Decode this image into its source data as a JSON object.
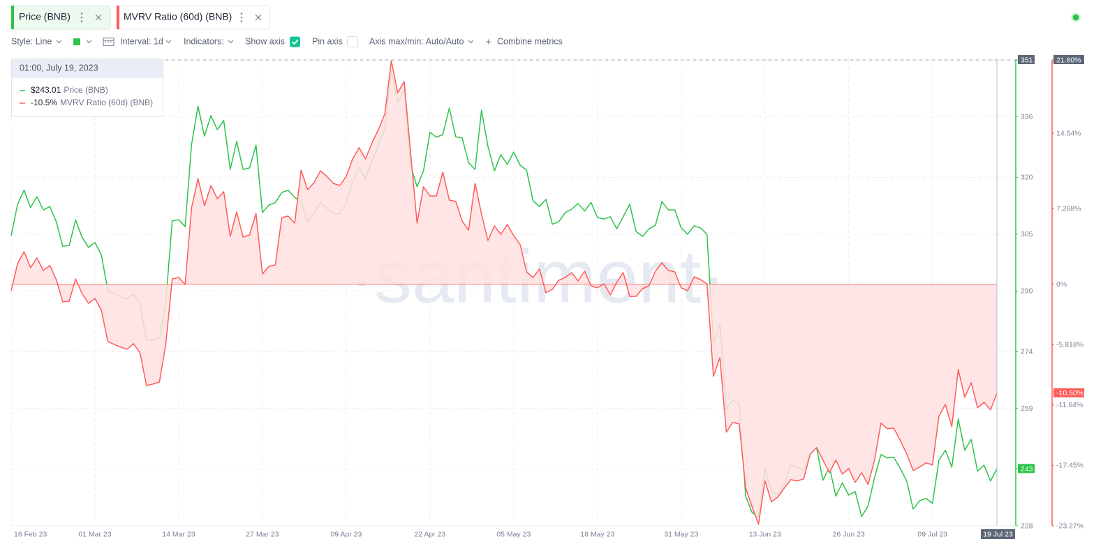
{
  "chart_data": {
    "type": "line",
    "toolbar": {
      "style": "Style: Line",
      "interval": "Interval: 1d",
      "indicators": "Indicators:",
      "show_axis": "Show axis",
      "pin_axis": "Pin axis",
      "axis_minmax": "Axis max/min: Auto/Auto",
      "combine": "Combine metrics"
    },
    "watermark": "·santiment·",
    "tooltip": {
      "title": "01:00, July 19, 2023",
      "value_labels": [
        "$243.01",
        "-10.5%"
      ]
    },
    "x": [
      "16 Feb 23",
      "17 Feb 23",
      "18 Feb 23",
      "19 Feb 23",
      "20 Feb 23",
      "21 Feb 23",
      "22 Feb 23",
      "23 Feb 23",
      "24 Feb 23",
      "25 Feb 23",
      "26 Feb 23",
      "27 Feb 23",
      "28 Feb 23",
      "01 Mar 23",
      "02 Mar 23",
      "03 Mar 23",
      "04 Mar 23",
      "05 Mar 23",
      "06 Mar 23",
      "07 Mar 23",
      "08 Mar 23",
      "09 Mar 23",
      "10 Mar 23",
      "11 Mar 23",
      "12 Mar 23",
      "13 Mar 23",
      "14 Mar 23",
      "15 Mar 23",
      "16 Mar 23",
      "17 Mar 23",
      "18 Mar 23",
      "19 Mar 23",
      "20 Mar 23",
      "21 Mar 23",
      "22 Mar 23",
      "23 Mar 23",
      "24 Mar 23",
      "25 Mar 23",
      "26 Mar 23",
      "27 Mar 23",
      "28 Mar 23",
      "29 Mar 23",
      "30 Mar 23",
      "31 Mar 23",
      "01 Apr 23",
      "02 Apr 23",
      "03 Apr 23",
      "04 Apr 23",
      "05 Apr 23",
      "06 Apr 23",
      "07 Apr 23",
      "08 Apr 23",
      "09 Apr 23",
      "10 Apr 23",
      "11 Apr 23",
      "12 Apr 23",
      "13 Apr 23",
      "14 Apr 23",
      "15 Apr 23",
      "16 Apr 23",
      "17 Apr 23",
      "18 Apr 23",
      "19 Apr 23",
      "20 Apr 23",
      "21 Apr 23",
      "22 Apr 23",
      "23 Apr 23",
      "24 Apr 23",
      "25 Apr 23",
      "26 Apr 23",
      "27 Apr 23",
      "28 Apr 23",
      "29 Apr 23",
      "30 Apr 23",
      "01 May 23",
      "02 May 23",
      "03 May 23",
      "04 May 23",
      "05 May 23",
      "06 May 23",
      "07 May 23",
      "08 May 23",
      "09 May 23",
      "10 May 23",
      "11 May 23",
      "12 May 23",
      "13 May 23",
      "14 May 23",
      "15 May 23",
      "16 May 23",
      "17 May 23",
      "18 May 23",
      "19 May 23",
      "20 May 23",
      "21 May 23",
      "22 May 23",
      "23 May 23",
      "24 May 23",
      "25 May 23",
      "26 May 23",
      "27 May 23",
      "28 May 23",
      "29 May 23",
      "30 May 23",
      "31 May 23",
      "01 Jun 23",
      "02 Jun 23",
      "03 Jun 23",
      "04 Jun 23",
      "05 Jun 23",
      "06 Jun 23",
      "07 Jun 23",
      "08 Jun 23",
      "09 Jun 23",
      "10 Jun 23",
      "11 Jun 23",
      "12 Jun 23",
      "13 Jun 23",
      "14 Jun 23",
      "15 Jun 23",
      "16 Jun 23",
      "17 Jun 23",
      "18 Jun 23",
      "19 Jun 23",
      "20 Jun 23",
      "21 Jun 23",
      "22 Jun 23",
      "23 Jun 23",
      "24 Jun 23",
      "25 Jun 23",
      "26 Jun 23",
      "27 Jun 23",
      "28 Jun 23",
      "29 Jun 23",
      "30 Jun 23",
      "01 Jul 23",
      "02 Jul 23",
      "03 Jul 23",
      "04 Jul 23",
      "05 Jul 23",
      "06 Jul 23",
      "07 Jul 23",
      "08 Jul 23",
      "09 Jul 23",
      "10 Jul 23",
      "11 Jul 23",
      "12 Jul 23",
      "13 Jul 23",
      "14 Jul 23",
      "15 Jul 23",
      "16 Jul 23",
      "17 Jul 23",
      "18 Jul 23",
      "19 Jul 23"
    ],
    "xticks": [
      "16 Feb 23",
      "01 Mar 23",
      "14 Mar 23",
      "27 Mar 23",
      "09 Apr 23",
      "22 Apr 23",
      "05 May 23",
      "18 May 23",
      "31 May 23",
      "13 Jun 23",
      "26 Jun 23",
      "09 Jul 23",
      "19 Jul 23"
    ],
    "series": [
      {
        "name": "Price (BNB)",
        "color": "#2bc34b",
        "axis": "y",
        "last_label": "243",
        "values": [
          304.6,
          312.9,
          316.6,
          312.0,
          314.9,
          311.4,
          312.3,
          308.3,
          301.8,
          302.0,
          308.7,
          304.2,
          301.5,
          302.8,
          299.5,
          290.2,
          289.3,
          288.4,
          287.9,
          289.1,
          286.7,
          277.0,
          277.0,
          277.5,
          287.1,
          308.5,
          308.8,
          307.0,
          328.7,
          338.8,
          330.9,
          336.3,
          332.6,
          335.0,
          322.1,
          329.5,
          322.1,
          322.5,
          328.5,
          310.7,
          312.7,
          313.3,
          316.0,
          316.6,
          314.7,
          313.6,
          308.3,
          310.7,
          313.4,
          311.8,
          310.5,
          310.3,
          313.4,
          318.6,
          322.6,
          319.7,
          324.3,
          328.4,
          332.8,
          348.2,
          339.8,
          343.3,
          323.0,
          317.5,
          321.7,
          331.9,
          330.6,
          331.3,
          338.3,
          330.7,
          330.4,
          323.9,
          322.1,
          337.7,
          328.2,
          321.7,
          326.0,
          323.4,
          326.7,
          323.2,
          321.9,
          313.8,
          312.3,
          314.2,
          307.6,
          308.3,
          310.7,
          311.6,
          313.1,
          311.1,
          313.4,
          309.4,
          309.0,
          309.6,
          306.4,
          309.6,
          312.9,
          305.7,
          304.4,
          306.4,
          307.4,
          313.6,
          311.4,
          311.4,
          306.6,
          305.0,
          307.2,
          306.6,
          305.0,
          276.3,
          281.4,
          258.8,
          261.3,
          260.1,
          235.8,
          231.5,
          230.2,
          243.3,
          237.0,
          236.1,
          239.1,
          244.0,
          243.5,
          242.4,
          247.0,
          248.6,
          240.0,
          243.5,
          235.8,
          239.3,
          236.1,
          237.0,
          230.4,
          233.2,
          240.7,
          246.8,
          245.9,
          246.1,
          243.1,
          239.8,
          232.4,
          234.6,
          235.2,
          233.9,
          245.3,
          247.9,
          243.5,
          256.2,
          247.9,
          250.8,
          242.4,
          244.0,
          239.8,
          243.01
        ]
      },
      {
        "name": "MVRV Ratio (60d) (BNB)",
        "color": "#ff5b5b",
        "axis": "y2",
        "area": true,
        "area_color": "#ffe0e0",
        "last_label": "-10.50%",
        "values": [
          -0.63,
          1.99,
          3.13,
          1.59,
          2.53,
          1.32,
          1.79,
          0.44,
          -1.7,
          -1.64,
          0.51,
          -0.9,
          -1.84,
          -1.37,
          -2.51,
          -5.53,
          -5.8,
          -6.07,
          -6.27,
          -5.73,
          -6.61,
          -9.76,
          -9.63,
          -9.43,
          -5.8,
          0.51,
          0.65,
          -0.03,
          7.36,
          10.18,
          7.56,
          9.51,
          8.24,
          8.91,
          4.61,
          6.96,
          4.54,
          4.74,
          6.82,
          0.98,
          1.72,
          1.85,
          6.42,
          6.56,
          5.88,
          10.99,
          9.11,
          9.78,
          10.92,
          10.38,
          9.71,
          9.51,
          10.38,
          12.06,
          13.14,
          12.06,
          13.61,
          14.88,
          16.43,
          21.53,
          18.44,
          19.52,
          12.6,
          5.88,
          9.38,
          8.5,
          8.5,
          10.79,
          8.1,
          7.97,
          6.09,
          5.21,
          9.71,
          6.76,
          4.21,
          5.62,
          4.81,
          5.75,
          4.68,
          3.8,
          1.18,
          0.65,
          1.45,
          -0.83,
          -0.5,
          0.38,
          0.65,
          1.12,
          0.31,
          1.25,
          -0.16,
          -0.36,
          0.04,
          -1.03,
          0.18,
          1.12,
          -1.17,
          -1.17,
          -0.43,
          -0.16,
          1.25,
          2.06,
          1.32,
          1.18,
          -0.36,
          -0.63,
          0.71,
          0.44,
          0.04,
          -8.89,
          -7.08,
          -14.26,
          -13.32,
          -13.46,
          -19.64,
          -21.45,
          -23.13,
          -18.96,
          -20.98,
          -20.51,
          -19.64,
          -18.83,
          -18.96,
          -18.76,
          -16.41,
          -15.74,
          -16.95,
          -18.16,
          -16.95,
          -18.29,
          -17.76,
          -19.1,
          -18.16,
          -19.3,
          -16.95,
          -13.39,
          -13.93,
          -13.86,
          -15.07,
          -16.35,
          -17.96,
          -17.62,
          -17.22,
          -17.42,
          -12.72,
          -11.58,
          -13.73,
          -8.22,
          -10.91,
          -9.49,
          -11.91,
          -11.38,
          -12.11,
          -10.5
        ]
      }
    ],
    "ylim": [
      228,
      351
    ],
    "yticks": [
      351,
      336,
      320,
      305,
      290,
      274,
      259,
      243,
      228
    ],
    "y2lim": [
      -23.27,
      21.6
    ],
    "y2ticks": [
      {
        "value": 21.6,
        "label": "21.60%"
      },
      {
        "value": 14.54,
        "label": "14.54%"
      },
      {
        "value": 7.268,
        "label": "7.268%"
      },
      {
        "value": 0,
        "label": "0%"
      },
      {
        "value": -5.818,
        "label": "-5.818%"
      },
      {
        "value": -11.64,
        "label": "-11.64%"
      },
      {
        "value": -17.45,
        "label": "-17.45%"
      },
      {
        "value": -23.27,
        "label": "-23.27%"
      }
    ],
    "grid": true
  }
}
